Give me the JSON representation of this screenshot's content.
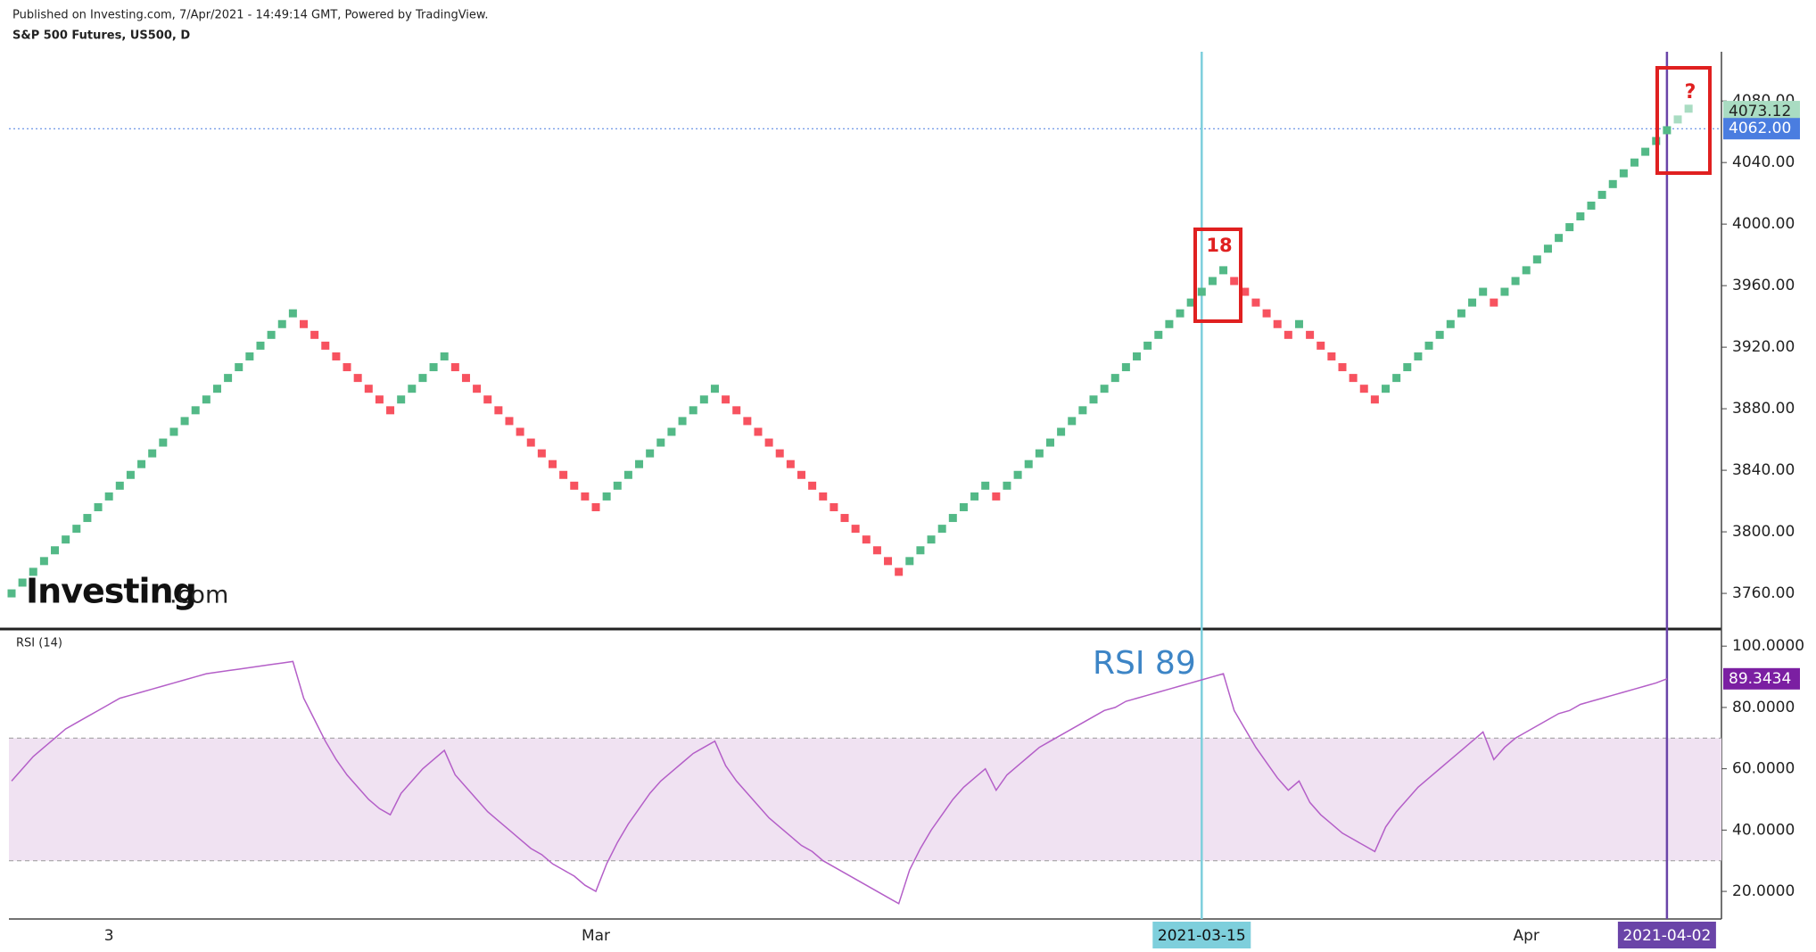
{
  "header": {
    "published": "Published on Investing.com, 7/Apr/2021 - 14:49:14 GMT, Powered by TradingView.",
    "logo": [
      "Investing",
      ".com"
    ]
  },
  "chart_data": [
    {
      "type": "renko",
      "title": "S&P 500 Futures, US500, D",
      "up_color": "#53b987",
      "down_color": "#f7525f",
      "categories": [
        null,
        null,
        null,
        null,
        null,
        null,
        null,
        null,
        null,
        "3",
        null,
        null,
        null,
        null,
        null,
        null,
        null,
        null,
        null,
        null,
        null,
        null,
        null,
        null,
        null,
        null,
        null,
        null,
        null,
        null,
        null,
        null,
        null,
        null,
        null,
        null,
        null,
        null,
        null,
        null,
        null,
        null,
        null,
        null,
        null,
        null,
        null,
        null,
        null,
        null,
        null,
        null,
        null,
        null,
        "Mar",
        null,
        null,
        null,
        null,
        null,
        null,
        null,
        null,
        null,
        null,
        null,
        null,
        null,
        null,
        null,
        null,
        null,
        null,
        null,
        null,
        null,
        null,
        null,
        null,
        null,
        null,
        null,
        null,
        null,
        null,
        null,
        null,
        null,
        null,
        null,
        null,
        null,
        null,
        null,
        null,
        null,
        null,
        null,
        null,
        null,
        null,
        null,
        null,
        null,
        null,
        null,
        null,
        null,
        null,
        null,
        "2021-03-15",
        null,
        null,
        null,
        null,
        null,
        null,
        null,
        null,
        null,
        null,
        null,
        null,
        null,
        null,
        null,
        null,
        null,
        null,
        null,
        null,
        null,
        null,
        null,
        null,
        null,
        null,
        null,
        null,
        null,
        "Apr",
        null,
        null,
        null,
        null,
        null,
        null,
        null,
        null,
        null,
        null,
        null,
        null,
        "2021-04-02"
      ],
      "values": [
        3760,
        3767,
        3774,
        3781,
        3788,
        3795,
        3802,
        3809,
        3816,
        3823,
        3830,
        3837,
        3844,
        3851,
        3858,
        3865,
        3872,
        3879,
        3886,
        3893,
        3900,
        3907,
        3914,
        3921,
        3928,
        3935,
        3942,
        3935,
        3928,
        3921,
        3914,
        3907,
        3900,
        3893,
        3886,
        3879,
        3886,
        3893,
        3900,
        3907,
        3914,
        3907,
        3900,
        3893,
        3886,
        3879,
        3872,
        3865,
        3858,
        3851,
        3844,
        3837,
        3830,
        3823,
        3816,
        3823,
        3830,
        3837,
        3844,
        3851,
        3858,
        3865,
        3872,
        3879,
        3886,
        3893,
        3886,
        3879,
        3872,
        3865,
        3858,
        3851,
        3844,
        3837,
        3830,
        3823,
        3816,
        3809,
        3802,
        3795,
        3788,
        3781,
        3774,
        3781,
        3788,
        3795,
        3802,
        3809,
        3816,
        3823,
        3830,
        3823,
        3830,
        3837,
        3844,
        3851,
        3858,
        3865,
        3872,
        3879,
        3886,
        3893,
        3900,
        3907,
        3914,
        3921,
        3928,
        3935,
        3942,
        3949,
        3956,
        3963,
        3970,
        3963,
        3956,
        3949,
        3942,
        3935,
        3928,
        3935,
        3928,
        3921,
        3914,
        3907,
        3900,
        3893,
        3886,
        3893,
        3900,
        3907,
        3914,
        3921,
        3928,
        3935,
        3942,
        3949,
        3956,
        3949,
        3956,
        3963,
        3970,
        3977,
        3984,
        3991,
        3998,
        4005,
        4012,
        4019,
        4026,
        4033,
        4040,
        4047,
        4054,
        4061
      ],
      "pending_bricks": [
        4068,
        4075
      ],
      "pending_color": "#a9dcc2",
      "last_price": {
        "value": 4062,
        "label": "4062.00"
      },
      "last_price_color": "#4a7de0",
      "pending_price": 4073.12,
      "ylim": [
        3738,
        4112
      ],
      "yticks": [
        {
          "value": 3760,
          "label": "3760.00"
        },
        {
          "value": 3800,
          "label": "3800.00"
        },
        {
          "value": 3840,
          "label": "3840.00"
        },
        {
          "value": 3880,
          "label": "3880.00"
        },
        {
          "value": 3920,
          "label": "3920.00"
        },
        {
          "value": 3960,
          "label": "3960.00"
        },
        {
          "value": 4000,
          "label": "4000.00"
        },
        {
          "value": 4040,
          "label": "4040.00"
        },
        {
          "value": 4080,
          "label": "4080.00"
        }
      ],
      "annotations": [
        "18",
        "?"
      ]
    },
    {
      "type": "line",
      "title": "RSI (14)",
      "color": "#b45fc8",
      "values": [
        56,
        60,
        64,
        67,
        70,
        73,
        75,
        77,
        79,
        81,
        83,
        84,
        85,
        86,
        87,
        88,
        89,
        90,
        91,
        91.5,
        92,
        92.5,
        93,
        93.5,
        94,
        94.5,
        95,
        83,
        76,
        69,
        63,
        58,
        54,
        50,
        47,
        45,
        52,
        56,
        60,
        63,
        66,
        58,
        54,
        50,
        46,
        43,
        40,
        37,
        34,
        32,
        29,
        27,
        25,
        22,
        20,
        29,
        36,
        42,
        47,
        52,
        56,
        59,
        62,
        65,
        67,
        69,
        61,
        56,
        52,
        48,
        44,
        41,
        38,
        35,
        33,
        30,
        28,
        26,
        24,
        22,
        20,
        18,
        16,
        27,
        34,
        40,
        45,
        50,
        54,
        57,
        60,
        53,
        58,
        61,
        64,
        67,
        69,
        71,
        73,
        75,
        77,
        79,
        80,
        82,
        83,
        84,
        85,
        86,
        87,
        88,
        89,
        90,
        91,
        79,
        73,
        67,
        62,
        57,
        53,
        56,
        49,
        45,
        42,
        39,
        37,
        35,
        33,
        41,
        46,
        50,
        54,
        57,
        60,
        63,
        66,
        69,
        72,
        63,
        67,
        70,
        72,
        74,
        76,
        78,
        79,
        81,
        82,
        83,
        84,
        85,
        86,
        87,
        88,
        89.3434
      ],
      "band": [
        30,
        70
      ],
      "band_color": "#f0e2f2",
      "ylim": [
        11,
        105
      ],
      "yticks": [
        {
          "value": 20,
          "label": "20.0000"
        },
        {
          "value": 40,
          "label": "40.0000"
        },
        {
          "value": 60,
          "label": "60.0000"
        },
        {
          "value": 80,
          "label": "80.0000"
        },
        {
          "value": 100,
          "label": "100.0000"
        }
      ],
      "annotation": "RSI 89"
    }
  ]
}
